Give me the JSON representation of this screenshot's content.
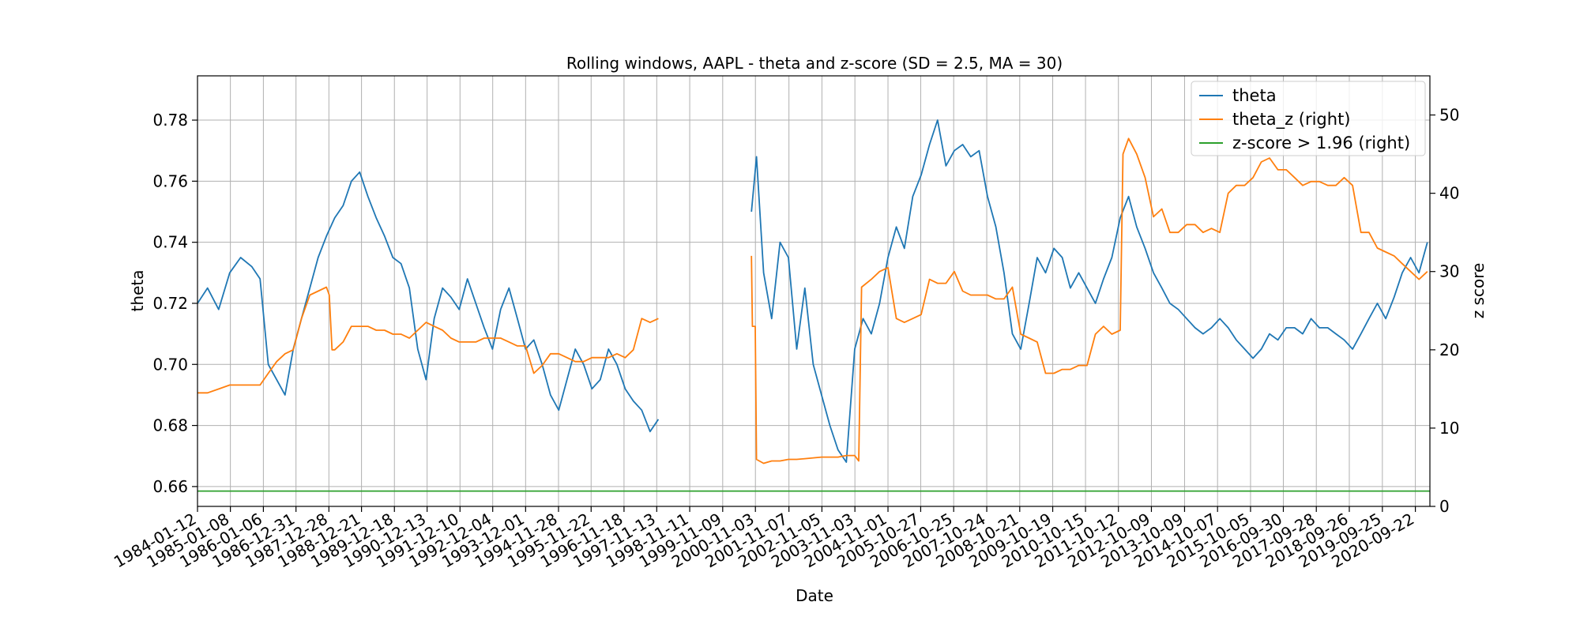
{
  "chart_data": {
    "type": "line",
    "title": "Rolling windows, AAPL - theta and z-score (SD = 2.5, MA = 30)",
    "xlabel": "Date",
    "ylabel_left": "theta",
    "ylabel_right": "z score",
    "x_range": [
      "1984-01-12",
      "2021-03-01"
    ],
    "ylim_left": [
      0.6535,
      0.7945
    ],
    "ylim_right": [
      0.0,
      55.0
    ],
    "left_ticks": [
      0.66,
      0.68,
      0.7,
      0.72,
      0.74,
      0.76,
      0.78
    ],
    "left_tick_labels": [
      "0.66",
      "0.68",
      "0.70",
      "0.72",
      "0.74",
      "0.76",
      "0.78"
    ],
    "right_ticks": [
      0,
      10,
      20,
      30,
      40,
      50
    ],
    "right_tick_labels": [
      "0",
      "10",
      "20",
      "30",
      "40",
      "50"
    ],
    "x_tick_labels": [
      "1984-01-12",
      "1985-01-08",
      "1986-01-06",
      "1986-12-31",
      "1987-12-28",
      "1988-12-21",
      "1989-12-18",
      "1990-12-13",
      "1991-12-10",
      "1992-12-04",
      "1993-12-01",
      "1994-11-28",
      "1995-11-22",
      "1996-11-18",
      "1997-11-13",
      "1998-11-11",
      "1999-11-09",
      "2000-11-03",
      "2001-11-07",
      "2002-11-05",
      "2003-11-03",
      "2004-11-01",
      "2005-10-27",
      "2006-10-25",
      "2007-10-24",
      "2008-10-21",
      "2009-10-19",
      "2010-10-15",
      "2011-10-12",
      "2012-10-09",
      "2013-10-09",
      "2014-10-07",
      "2015-10-05",
      "2016-09-30",
      "2017-09-28",
      "2018-09-26",
      "2019-09-25",
      "2020-09-22"
    ],
    "grid": true,
    "legend_position": "top-right",
    "series": [
      {
        "name": "theta",
        "axis": "left",
        "color": "#1f77b4",
        "segments": [
          {
            "x": [
              "1984-01-12",
              "1984-05-01",
              "1984-09-01",
              "1985-01-01",
              "1985-05-01",
              "1985-09-01",
              "1985-12-01",
              "1986-03-01",
              "1986-06-01",
              "1986-09-01",
              "1986-12-01",
              "1987-03-01",
              "1987-06-01",
              "1987-09-01",
              "1987-12-01",
              "1988-03-01",
              "1988-06-01",
              "1988-09-01",
              "1988-12-01",
              "1989-03-01",
              "1989-06-01",
              "1989-09-01",
              "1989-12-01",
              "1990-03-01",
              "1990-06-01",
              "1990-09-01",
              "1990-12-01",
              "1991-03-01",
              "1991-06-01",
              "1991-09-01",
              "1991-12-01",
              "1992-03-01",
              "1992-06-01",
              "1992-09-01",
              "1992-12-01",
              "1993-03-01",
              "1993-06-01",
              "1993-09-01",
              "1993-12-01",
              "1994-03-01",
              "1994-06-01",
              "1994-09-01",
              "1994-12-01",
              "1995-03-01",
              "1995-06-01",
              "1995-09-01",
              "1995-12-01",
              "1996-03-01",
              "1996-06-01",
              "1996-09-01",
              "1996-12-01",
              "1997-03-01",
              "1997-06-01",
              "1997-09-01",
              "1997-12-01"
            ],
            "y": [
              0.72,
              0.725,
              0.718,
              0.73,
              0.735,
              0.732,
              0.728,
              0.7,
              0.695,
              0.69,
              0.705,
              0.715,
              0.725,
              0.735,
              0.742,
              0.748,
              0.752,
              0.76,
              0.763,
              0.755,
              0.748,
              0.742,
              0.735,
              0.733,
              0.725,
              0.705,
              0.695,
              0.715,
              0.725,
              0.722,
              0.718,
              0.728,
              0.72,
              0.712,
              0.705,
              0.718,
              0.725,
              0.715,
              0.705,
              0.708,
              0.7,
              0.69,
              0.685,
              0.695,
              0.705,
              0.7,
              0.692,
              0.695,
              0.705,
              0.7,
              0.692,
              0.688,
              0.685,
              0.678,
              0.682
            ]
          },
          {
            "x": [
              "2000-09-20",
              "2000-11-15",
              "2001-02-01",
              "2001-05-01",
              "2001-08-01",
              "2001-11-01",
              "2002-02-01",
              "2002-05-01",
              "2002-08-01",
              "2002-11-01",
              "2003-02-01",
              "2003-05-01",
              "2003-08-01",
              "2003-11-01",
              "2004-02-01",
              "2004-05-01",
              "2004-08-01",
              "2004-11-01",
              "2005-02-01",
              "2005-05-01",
              "2005-08-01",
              "2005-11-01",
              "2006-02-01",
              "2006-05-01",
              "2006-08-01",
              "2006-11-01",
              "2007-02-01",
              "2007-05-01",
              "2007-08-01",
              "2007-11-01",
              "2008-02-01",
              "2008-05-01",
              "2008-08-01",
              "2008-11-01",
              "2009-02-01",
              "2009-05-01",
              "2009-08-01",
              "2009-11-01",
              "2010-02-01",
              "2010-05-01",
              "2010-08-01",
              "2010-11-01",
              "2011-02-01",
              "2011-05-01",
              "2011-08-01",
              "2011-11-01",
              "2012-02-01",
              "2012-05-01",
              "2012-08-01",
              "2012-11-01",
              "2013-02-01",
              "2013-05-01",
              "2013-08-01",
              "2013-11-01",
              "2014-02-01",
              "2014-05-01",
              "2014-08-01",
              "2014-11-01",
              "2015-02-01",
              "2015-05-01",
              "2015-08-01",
              "2015-11-01",
              "2016-02-01",
              "2016-05-01",
              "2016-08-01",
              "2016-11-01",
              "2017-02-01",
              "2017-05-01",
              "2017-08-01",
              "2017-11-01",
              "2018-02-01",
              "2018-05-01",
              "2018-08-01",
              "2018-11-01",
              "2019-02-01",
              "2019-05-01",
              "2019-08-01",
              "2019-11-01",
              "2020-02-01",
              "2020-05-01",
              "2020-08-01",
              "2020-11-01",
              "2021-02-01"
            ],
            "y": [
              0.75,
              0.768,
              0.73,
              0.715,
              0.74,
              0.735,
              0.705,
              0.725,
              0.7,
              0.69,
              0.68,
              0.672,
              0.668,
              0.705,
              0.715,
              0.71,
              0.72,
              0.735,
              0.745,
              0.738,
              0.755,
              0.762,
              0.772,
              0.78,
              0.765,
              0.77,
              0.772,
              0.768,
              0.77,
              0.755,
              0.745,
              0.73,
              0.71,
              0.705,
              0.72,
              0.735,
              0.73,
              0.738,
              0.735,
              0.725,
              0.73,
              0.725,
              0.72,
              0.728,
              0.735,
              0.748,
              0.755,
              0.745,
              0.738,
              0.73,
              0.725,
              0.72,
              0.718,
              0.715,
              0.712,
              0.71,
              0.712,
              0.715,
              0.712,
              0.708,
              0.705,
              0.702,
              0.705,
              0.71,
              0.708,
              0.712,
              0.712,
              0.71,
              0.715,
              0.712,
              0.712,
              0.71,
              0.708,
              0.705,
              0.71,
              0.715,
              0.72,
              0.715,
              0.722,
              0.73,
              0.735,
              0.73,
              0.74
            ]
          }
        ]
      },
      {
        "name": "theta_z (right)",
        "axis": "right",
        "color": "#ff7f0e",
        "segments": [
          {
            "x": [
              "1984-01-12",
              "1984-05-01",
              "1984-09-01",
              "1985-01-01",
              "1985-05-01",
              "1985-09-01",
              "1985-12-01",
              "1986-03-01",
              "1986-06-01",
              "1986-09-01",
              "1986-12-01",
              "1987-03-01",
              "1987-06-01",
              "1987-09-01",
              "1987-12-01",
              "1988-01-01",
              "1988-02-01",
              "1988-03-01",
              "1988-06-01",
              "1988-09-01",
              "1988-12-01",
              "1989-03-01",
              "1989-06-01",
              "1989-09-01",
              "1989-12-01",
              "1990-03-01",
              "1990-06-01",
              "1990-09-01",
              "1990-12-01",
              "1991-03-01",
              "1991-06-01",
              "1991-09-01",
              "1991-12-01",
              "1992-03-01",
              "1992-06-01",
              "1992-09-01",
              "1992-12-01",
              "1993-03-01",
              "1993-06-01",
              "1993-09-01",
              "1993-12-01",
              "1994-03-01",
              "1994-06-01",
              "1994-09-01",
              "1994-12-01",
              "1995-03-01",
              "1995-06-01",
              "1995-09-01",
              "1995-12-01",
              "1996-03-01",
              "1996-06-01",
              "1996-09-01",
              "1996-12-01",
              "1997-03-01",
              "1997-06-01",
              "1997-09-01",
              "1997-12-01"
            ],
            "y": [
              14.5,
              14.5,
              15.0,
              15.5,
              15.5,
              15.5,
              15.5,
              17.0,
              18.5,
              19.5,
              20.0,
              24.0,
              27.0,
              27.5,
              28.0,
              27.0,
              20.0,
              20.0,
              21.0,
              23.0,
              23.0,
              23.0,
              22.5,
              22.5,
              22.0,
              22.0,
              21.5,
              22.5,
              23.5,
              23.0,
              22.5,
              21.5,
              21.0,
              21.0,
              21.0,
              21.5,
              21.5,
              21.5,
              21.0,
              20.5,
              20.5,
              17.0,
              18.0,
              19.5,
              19.5,
              19.0,
              18.5,
              18.5,
              19.0,
              19.0,
              19.0,
              19.5,
              19.0,
              20.0,
              24.0,
              23.5,
              24.0
            ]
          },
          {
            "x": [
              "2000-09-20",
              "2000-10-01",
              "2000-11-01",
              "2000-11-15",
              "2001-02-01",
              "2001-05-01",
              "2001-08-01",
              "2001-11-01",
              "2002-02-01",
              "2002-05-01",
              "2002-08-01",
              "2002-11-01",
              "2003-02-01",
              "2003-05-01",
              "2003-08-01",
              "2003-11-01",
              "2003-12-15",
              "2004-01-15",
              "2004-05-01",
              "2004-08-01",
              "2004-11-01",
              "2005-02-01",
              "2005-05-01",
              "2005-08-01",
              "2005-11-01",
              "2006-02-01",
              "2006-05-01",
              "2006-08-01",
              "2006-11-01",
              "2007-02-01",
              "2007-05-01",
              "2007-08-01",
              "2007-11-01",
              "2008-02-01",
              "2008-05-01",
              "2008-08-01",
              "2008-11-01",
              "2009-02-01",
              "2009-05-01",
              "2009-08-01",
              "2009-11-01",
              "2010-02-01",
              "2010-05-01",
              "2010-08-01",
              "2010-11-01",
              "2011-02-01",
              "2011-05-01",
              "2011-08-01",
              "2011-11-01",
              "2011-12-01",
              "2012-02-01",
              "2012-05-01",
              "2012-08-01",
              "2012-11-01",
              "2013-02-01",
              "2013-05-01",
              "2013-08-01",
              "2013-11-01",
              "2014-02-01",
              "2014-05-01",
              "2014-08-01",
              "2014-11-01",
              "2015-02-01",
              "2015-05-01",
              "2015-08-01",
              "2015-11-01",
              "2016-02-01",
              "2016-05-01",
              "2016-08-01",
              "2016-11-01",
              "2017-02-01",
              "2017-05-01",
              "2017-08-01",
              "2017-11-01",
              "2018-02-01",
              "2018-05-01",
              "2018-08-01",
              "2018-11-01",
              "2019-02-01",
              "2019-05-01",
              "2019-08-01",
              "2019-11-01",
              "2020-02-01",
              "2020-05-01",
              "2020-08-01",
              "2020-11-01",
              "2021-02-01"
            ],
            "y": [
              32.0,
              23.0,
              23.0,
              6.0,
              5.5,
              5.8,
              5.8,
              6.0,
              6.0,
              6.1,
              6.2,
              6.3,
              6.3,
              6.3,
              6.5,
              6.5,
              5.8,
              28.0,
              29.0,
              30.0,
              30.5,
              24.0,
              23.5,
              24.0,
              24.5,
              29.0,
              28.5,
              28.5,
              30.0,
              27.5,
              27.0,
              27.0,
              27.0,
              26.5,
              26.5,
              28.0,
              22.0,
              21.5,
              21.0,
              17.0,
              17.0,
              17.5,
              17.5,
              18.0,
              18.0,
              22.0,
              23.0,
              22.0,
              22.5,
              45.0,
              47.0,
              45.0,
              42.0,
              37.0,
              38.0,
              35.0,
              35.0,
              36.0,
              36.0,
              35.0,
              35.5,
              35.0,
              40.0,
              41.0,
              41.0,
              42.0,
              44.0,
              44.5,
              43.0,
              43.0,
              42.0,
              41.0,
              41.5,
              41.5,
              41.0,
              41.0,
              42.0,
              41.0,
              35.0,
              35.0,
              33.0,
              32.5,
              32.0,
              31.0,
              30.0,
              29.0,
              30.0
            ]
          }
        ]
      },
      {
        "name": "z-score > 1.96 (right)",
        "axis": "right",
        "color": "#2ca02c",
        "segments": [
          {
            "x": [
              "1984-01-12",
              "2021-03-01"
            ],
            "y": [
              1.96,
              1.96
            ]
          }
        ]
      }
    ]
  }
}
